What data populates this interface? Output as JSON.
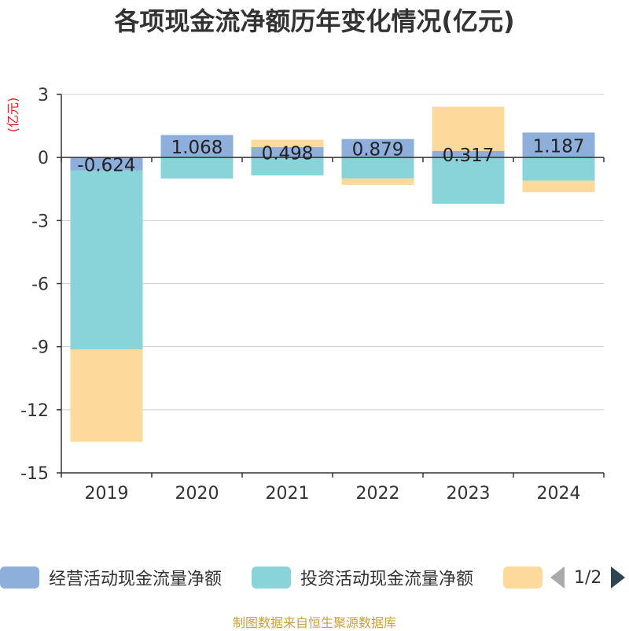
{
  "title": "各项现金流净额历年变化情况(亿元)",
  "source": "制图数据来自恒生聚源数据库",
  "colors": {
    "operating": "#8eaedb",
    "investing": "#88d4d8",
    "financing": "#fdd99b",
    "axis": "#333333",
    "grid": "#cccccc",
    "ylabel": "#e02020"
  },
  "legend": [
    {
      "label": "经营活动现金流量净额",
      "color": "#8eaedb"
    },
    {
      "label": "投资活动现金流量净额",
      "color": "#88d4d8"
    },
    {
      "label": "",
      "color": "#fdd99b"
    }
  ],
  "pager": {
    "text": "1/2"
  },
  "chart_data": {
    "type": "bar",
    "stacked": true,
    "title": "各项现金流净额历年变化情况(亿元)",
    "ylabel": "(亿元)",
    "ylim": [
      -15,
      3
    ],
    "yticks": [
      3,
      0,
      -3,
      -6,
      -9,
      -12,
      -15
    ],
    "categories": [
      "2019",
      "2020",
      "2021",
      "2022",
      "2023",
      "2024"
    ],
    "series": [
      {
        "name": "经营活动现金流量净额",
        "values": [
          -0.624,
          1.068,
          0.498,
          0.879,
          0.317,
          1.187
        ]
      },
      {
        "name": "投资活动现金流量净额",
        "values": [
          -8.5,
          -1.0,
          -0.85,
          -1.0,
          -2.2,
          -1.1
        ]
      },
      {
        "values": [
          -4.4,
          0,
          0.35,
          -0.3,
          2.1,
          -0.55
        ]
      }
    ],
    "data_labels": [
      "-0.624",
      "1.068",
      "0.498",
      "0.879",
      "0.317",
      "1.187"
    ],
    "grid": true,
    "legend_position": "bottom"
  }
}
